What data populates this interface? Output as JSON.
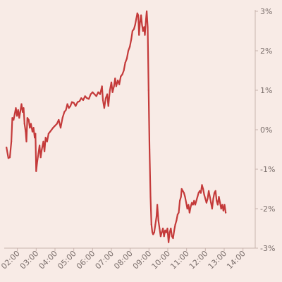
{
  "chart_data": {
    "type": "line",
    "title": "",
    "xlabel": "",
    "ylabel": "",
    "x_unit": "time of day (hours)",
    "xlim": [
      1.3,
      14.65
    ],
    "ylim": [
      -3,
      3
    ],
    "grid": false,
    "legend": "none",
    "colors": {
      "background": "#F8EBE6",
      "line": "#C43A3A",
      "axis": "#c9b4ae",
      "text": "#7a6e6b"
    },
    "x_ticks": [
      {
        "value": 2,
        "label": "02:00"
      },
      {
        "value": 3,
        "label": "03:00"
      },
      {
        "value": 4,
        "label": "04:00"
      },
      {
        "value": 5,
        "label": "05:00"
      },
      {
        "value": 6,
        "label": "06:00"
      },
      {
        "value": 7,
        "label": "07:00"
      },
      {
        "value": 8,
        "label": "08:00"
      },
      {
        "value": 9,
        "label": "09:00"
      },
      {
        "value": 10,
        "label": "10:00"
      },
      {
        "value": 11,
        "label": "11:00"
      },
      {
        "value": 12,
        "label": "12:00"
      },
      {
        "value": 13,
        "label": "13:00"
      },
      {
        "value": 14,
        "label": "14:00"
      }
    ],
    "y_ticks": [
      {
        "value": 3,
        "label": "3%"
      },
      {
        "value": 2,
        "label": "2%"
      },
      {
        "value": 1,
        "label": "1%"
      },
      {
        "value": 0,
        "label": "0%"
      },
      {
        "value": -1,
        "label": "-1%"
      },
      {
        "value": -2,
        "label": "-2%"
      },
      {
        "value": -3,
        "label": "-3%"
      }
    ],
    "series": [
      {
        "points": [
          [
            1.42,
            -0.45
          ],
          [
            1.52,
            -0.72
          ],
          [
            1.6,
            -0.7
          ],
          [
            1.68,
            -0.3
          ],
          [
            1.73,
            0.3
          ],
          [
            1.8,
            0.25
          ],
          [
            1.86,
            0.4
          ],
          [
            1.92,
            0.55
          ],
          [
            1.98,
            0.35
          ],
          [
            2.04,
            0.5
          ],
          [
            2.1,
            0.3
          ],
          [
            2.15,
            0.45
          ],
          [
            2.22,
            0.65
          ],
          [
            2.28,
            0.45
          ],
          [
            2.33,
            0.55
          ],
          [
            2.38,
            0.15
          ],
          [
            2.44,
            -0.05
          ],
          [
            2.48,
            -0.3
          ],
          [
            2.53,
            0.3
          ],
          [
            2.6,
            0.25
          ],
          [
            2.66,
            0.05
          ],
          [
            2.72,
            0.15
          ],
          [
            2.8,
            -0.05
          ],
          [
            2.86,
            0.05
          ],
          [
            2.92,
            -0.2
          ],
          [
            2.96,
            -0.1
          ],
          [
            3.0,
            -1.05
          ],
          [
            3.06,
            -0.8
          ],
          [
            3.12,
            -0.6
          ],
          [
            3.18,
            -0.4
          ],
          [
            3.24,
            -0.7
          ],
          [
            3.3,
            -0.5
          ],
          [
            3.38,
            -0.3
          ],
          [
            3.44,
            -0.55
          ],
          [
            3.5,
            -0.2
          ],
          [
            3.58,
            -0.3
          ],
          [
            3.66,
            -0.1
          ],
          [
            3.74,
            -0.05
          ],
          [
            3.82,
            0.0
          ],
          [
            3.9,
            0.05
          ],
          [
            4.0,
            0.1
          ],
          [
            4.1,
            0.15
          ],
          [
            4.2,
            0.25
          ],
          [
            4.3,
            0.05
          ],
          [
            4.4,
            0.3
          ],
          [
            4.5,
            0.45
          ],
          [
            4.58,
            0.5
          ],
          [
            4.66,
            0.65
          ],
          [
            4.74,
            0.55
          ],
          [
            4.82,
            0.6
          ],
          [
            4.9,
            0.7
          ],
          [
            5.0,
            0.68
          ],
          [
            5.1,
            0.6
          ],
          [
            5.2,
            0.7
          ],
          [
            5.3,
            0.72
          ],
          [
            5.4,
            0.8
          ],
          [
            5.5,
            0.75
          ],
          [
            5.6,
            0.85
          ],
          [
            5.7,
            0.8
          ],
          [
            5.8,
            0.78
          ],
          [
            5.9,
            0.9
          ],
          [
            6.0,
            0.95
          ],
          [
            6.1,
            0.9
          ],
          [
            6.2,
            0.85
          ],
          [
            6.3,
            0.95
          ],
          [
            6.4,
            0.9
          ],
          [
            6.5,
            1.1
          ],
          [
            6.55,
            0.75
          ],
          [
            6.62,
            0.55
          ],
          [
            6.7,
            0.8
          ],
          [
            6.78,
            0.9
          ],
          [
            6.84,
            0.6
          ],
          [
            6.92,
            1.0
          ],
          [
            7.0,
            1.2
          ],
          [
            7.06,
            0.95
          ],
          [
            7.14,
            1.1
          ],
          [
            7.2,
            1.3
          ],
          [
            7.26,
            1.1
          ],
          [
            7.34,
            1.25
          ],
          [
            7.42,
            1.15
          ],
          [
            7.5,
            1.35
          ],
          [
            7.58,
            1.4
          ],
          [
            7.66,
            1.5
          ],
          [
            7.74,
            1.7
          ],
          [
            7.82,
            1.8
          ],
          [
            7.9,
            2.0
          ],
          [
            7.98,
            2.1
          ],
          [
            8.06,
            2.3
          ],
          [
            8.12,
            2.5
          ],
          [
            8.2,
            2.55
          ],
          [
            8.26,
            2.65
          ],
          [
            8.32,
            2.8
          ],
          [
            8.38,
            2.95
          ],
          [
            8.43,
            2.9
          ],
          [
            8.47,
            2.4
          ],
          [
            8.52,
            2.7
          ],
          [
            8.58,
            2.9
          ],
          [
            8.63,
            2.65
          ],
          [
            8.68,
            2.5
          ],
          [
            8.74,
            2.6
          ],
          [
            8.78,
            2.4
          ],
          [
            8.84,
            2.8
          ],
          [
            8.88,
            3.0
          ],
          [
            8.93,
            2.6
          ],
          [
            8.98,
            1.0
          ],
          [
            9.03,
            -0.5
          ],
          [
            9.08,
            -1.7
          ],
          [
            9.13,
            -2.4
          ],
          [
            9.18,
            -2.6
          ],
          [
            9.22,
            -2.65
          ],
          [
            9.28,
            -2.6
          ],
          [
            9.34,
            -2.4
          ],
          [
            9.4,
            -2.2
          ],
          [
            9.44,
            -1.9
          ],
          [
            9.5,
            -2.3
          ],
          [
            9.56,
            -2.5
          ],
          [
            9.62,
            -2.7
          ],
          [
            9.68,
            -2.6
          ],
          [
            9.74,
            -2.5
          ],
          [
            9.8,
            -2.7
          ],
          [
            9.86,
            -2.55
          ],
          [
            9.92,
            -2.6
          ],
          [
            9.98,
            -2.5
          ],
          [
            10.04,
            -2.85
          ],
          [
            10.1,
            -2.6
          ],
          [
            10.16,
            -2.5
          ],
          [
            10.22,
            -2.7
          ],
          [
            10.28,
            -2.75
          ],
          [
            10.34,
            -2.55
          ],
          [
            10.4,
            -2.4
          ],
          [
            10.46,
            -2.3
          ],
          [
            10.52,
            -2.15
          ],
          [
            10.58,
            -2.1
          ],
          [
            10.64,
            -1.8
          ],
          [
            10.7,
            -1.7
          ],
          [
            10.74,
            -1.5
          ],
          [
            10.8,
            -1.55
          ],
          [
            10.86,
            -1.6
          ],
          [
            10.92,
            -1.7
          ],
          [
            10.98,
            -1.85
          ],
          [
            11.04,
            -2.0
          ],
          [
            11.1,
            -1.9
          ],
          [
            11.16,
            -2.1
          ],
          [
            11.22,
            -1.95
          ],
          [
            11.28,
            -1.85
          ],
          [
            11.34,
            -1.9
          ],
          [
            11.4,
            -1.8
          ],
          [
            11.46,
            -1.9
          ],
          [
            11.52,
            -1.8
          ],
          [
            11.58,
            -1.7
          ],
          [
            11.64,
            -1.6
          ],
          [
            11.7,
            -1.55
          ],
          [
            11.76,
            -1.6
          ],
          [
            11.82,
            -1.4
          ],
          [
            11.88,
            -1.5
          ],
          [
            11.94,
            -1.65
          ],
          [
            12.0,
            -1.75
          ],
          [
            12.06,
            -1.85
          ],
          [
            12.12,
            -1.75
          ],
          [
            12.18,
            -1.55
          ],
          [
            12.24,
            -1.7
          ],
          [
            12.3,
            -1.85
          ],
          [
            12.36,
            -2.0
          ],
          [
            12.42,
            -1.75
          ],
          [
            12.48,
            -1.6
          ],
          [
            12.54,
            -1.55
          ],
          [
            12.6,
            -1.8
          ],
          [
            12.66,
            -1.9
          ],
          [
            12.72,
            -1.7
          ],
          [
            12.78,
            -1.85
          ],
          [
            12.84,
            -2.0
          ],
          [
            12.9,
            -1.9
          ],
          [
            12.96,
            -2.05
          ],
          [
            13.02,
            -1.9
          ],
          [
            13.08,
            -2.1
          ]
        ]
      }
    ]
  }
}
